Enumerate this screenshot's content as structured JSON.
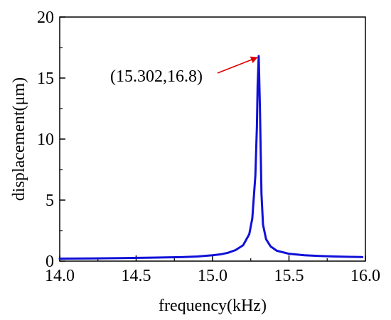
{
  "chart_data": {
    "type": "line",
    "title": "",
    "xlabel": "frequency(kHz)",
    "ylabel": "displacement(μm)",
    "xlim": [
      14.0,
      16.0
    ],
    "ylim": [
      0,
      20
    ],
    "x_ticks": [
      "14.0",
      "14.5",
      "15.0",
      "15.5",
      "16.0"
    ],
    "y_ticks": [
      "0",
      "5",
      "10",
      "15",
      "20"
    ],
    "grid": false,
    "legend": "none",
    "series": [
      {
        "color": "#1010d8",
        "x": [
          14.0,
          14.2,
          14.4,
          14.6,
          14.8,
          14.9,
          15.0,
          15.05,
          15.1,
          15.15,
          15.2,
          15.24,
          15.26,
          15.28,
          15.29,
          15.295,
          15.302,
          15.31,
          15.32,
          15.33,
          15.35,
          15.38,
          15.42,
          15.5,
          15.6,
          15.7,
          15.8,
          15.9,
          15.98
        ],
        "y": [
          0.2,
          0.22,
          0.25,
          0.28,
          0.33,
          0.38,
          0.48,
          0.55,
          0.68,
          0.9,
          1.3,
          2.2,
          3.5,
          7.0,
          11.0,
          14.5,
          16.8,
          12.5,
          5.5,
          3.0,
          1.8,
          1.2,
          0.85,
          0.6,
          0.48,
          0.42,
          0.38,
          0.35,
          0.33
        ]
      }
    ],
    "annotation": {
      "text": "(15.302,16.8)",
      "point": [
        15.302,
        16.8
      ],
      "arrow_color": "#e00000"
    }
  }
}
